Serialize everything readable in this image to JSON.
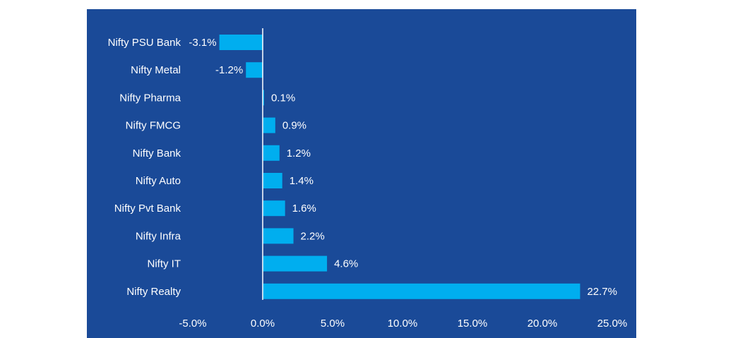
{
  "colors": {
    "panel_background": "#1a4a98",
    "bar_fill": "#00aeef",
    "text": "#ffffff",
    "axis_line": "#ffffff"
  },
  "chart_data": {
    "type": "bar",
    "orientation": "horizontal",
    "categories": [
      "Nifty PSU Bank",
      "Nifty Metal",
      "Nifty Pharma",
      "Nifty FMCG",
      "Nifty Bank",
      "Nifty Auto",
      "Nifty Pvt Bank",
      "Nifty Infra",
      "Nifty IT",
      "Nifty Realty"
    ],
    "values": [
      -3.1,
      -1.2,
      0.1,
      0.9,
      1.2,
      1.4,
      1.6,
      2.2,
      4.6,
      22.7
    ],
    "value_labels": [
      "-3.1%",
      "-1.2%",
      "0.1%",
      "0.9%",
      "1.2%",
      "1.4%",
      "1.6%",
      "2.2%",
      "4.6%",
      "22.7%"
    ],
    "xlim": [
      -5,
      25
    ],
    "xticks": [
      -5,
      0,
      5,
      10,
      15,
      20,
      25
    ],
    "xtick_labels": [
      "-5.0%",
      "0.0%",
      "5.0%",
      "10.0%",
      "15.0%",
      "20.0%",
      "25.0%"
    ],
    "grid": false,
    "legend": "none"
  }
}
